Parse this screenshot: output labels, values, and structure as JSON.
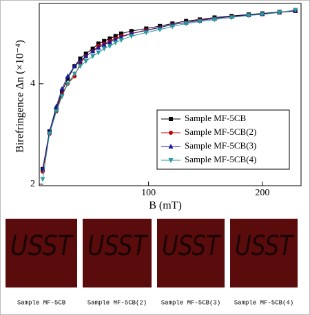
{
  "chart_data": {
    "type": "line",
    "x_label": "B (mT)",
    "y_label": "Birefringence Δn (×10⁻⁴)",
    "x": [
      7,
      13,
      19,
      24,
      29,
      35,
      40,
      45,
      51,
      56,
      61,
      66,
      71,
      76,
      85,
      98,
      110,
      121,
      133,
      145,
      158,
      173,
      188,
      200,
      215,
      229
    ],
    "series": [
      {
        "name": "Sample MF-5CB",
        "color": "#000000",
        "marker": "square",
        "values": [
          2.3,
          3.05,
          3.5,
          3.85,
          4.1,
          4.35,
          4.5,
          4.6,
          4.7,
          4.8,
          4.85,
          4.9,
          4.95,
          5.0,
          5.05,
          5.1,
          5.15,
          5.2,
          5.25,
          5.28,
          5.32,
          5.35,
          5.38,
          5.4,
          5.43,
          5.45
        ]
      },
      {
        "name": "Sample MF-5CB(2)",
        "color": "#c00000",
        "marker": "circle",
        "values": [
          2.25,
          3.0,
          3.45,
          3.8,
          4.0,
          4.15,
          4.4,
          4.55,
          4.65,
          4.75,
          4.8,
          4.85,
          4.9,
          4.95,
          5.0,
          5.07,
          5.12,
          5.18,
          5.22,
          5.27,
          5.3,
          5.34,
          5.37,
          5.39,
          5.42,
          5.45
        ]
      },
      {
        "name": "Sample MF-5CB(3)",
        "color": "#1a1a9c",
        "marker": "triangle-up",
        "values": [
          2.3,
          3.05,
          3.55,
          3.9,
          4.15,
          4.35,
          4.45,
          4.55,
          4.65,
          4.72,
          4.78,
          4.83,
          4.88,
          4.93,
          5.0,
          5.06,
          5.12,
          5.18,
          5.22,
          5.26,
          5.3,
          5.34,
          5.37,
          5.39,
          5.42,
          5.46
        ]
      },
      {
        "name": "Sample MF-5CB(4)",
        "color": "#2a9a9a",
        "marker": "triangle-down",
        "values": [
          2.1,
          3.0,
          3.45,
          3.75,
          4.0,
          4.2,
          4.35,
          4.45,
          4.55,
          4.62,
          4.7,
          4.75,
          4.82,
          4.87,
          4.95,
          5.02,
          5.08,
          5.14,
          5.2,
          5.24,
          5.28,
          5.32,
          5.36,
          5.38,
          5.42,
          5.47
        ]
      }
    ],
    "xlim": [
      4,
      234
    ],
    "xticks": [
      100,
      200
    ],
    "ylim": [
      1.97,
      5.6
    ],
    "yticks": [
      2,
      4
    ],
    "legend": "right",
    "grid": false
  },
  "photos": [
    {
      "text": "USST",
      "caption": "Sample MF-5CB"
    },
    {
      "text": "USST",
      "caption": "Sample MF-5CB(2)"
    },
    {
      "text": "USST",
      "caption": "Sample MF-5CB(3)"
    },
    {
      "text": "USST",
      "caption": "Sample MF-5CB(4)"
    }
  ]
}
